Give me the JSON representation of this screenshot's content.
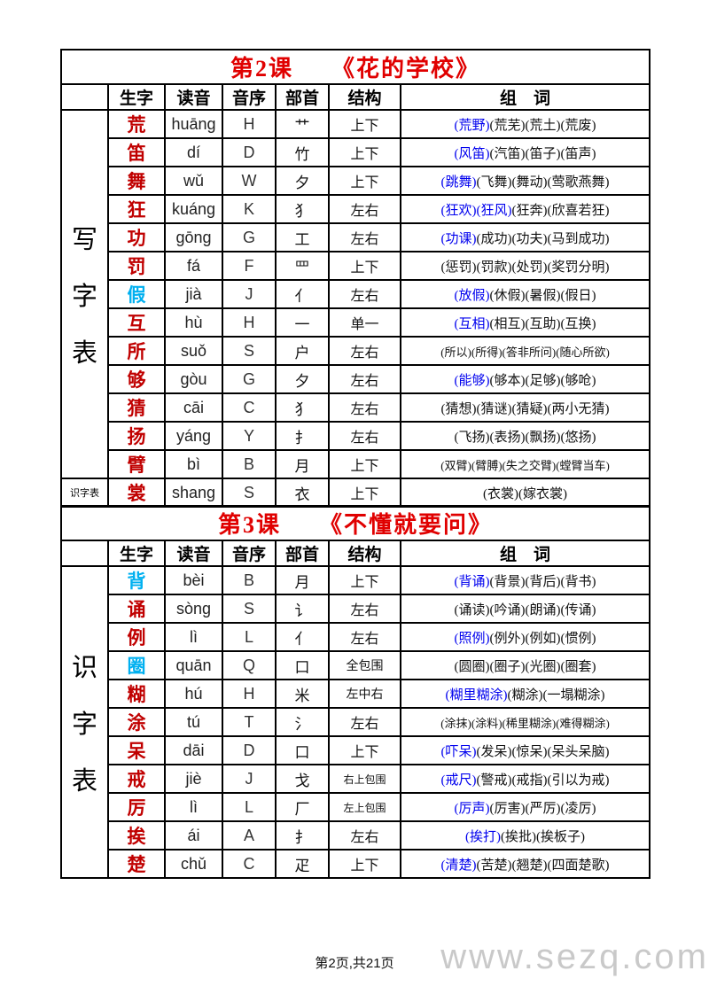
{
  "page": {
    "footer": "第2页,共21页",
    "watermark": "www.sezq.com"
  },
  "colors": {
    "title_red": "#e00000",
    "character_red": "#c00000",
    "character_cyan": "#00b0f0",
    "highlight_blue": "#0000ee",
    "watermark_gray": "#c9c9c9"
  },
  "columns": [
    "生字",
    "读音",
    "音序",
    "部首",
    "结构",
    "组　词"
  ],
  "tables": [
    {
      "title": "第2课　　《花的学校》",
      "side_label": "写字表",
      "bottom_side_label": "识字表",
      "rows": [
        {
          "char": "荒",
          "char_color": "red",
          "pinyin": "huāng",
          "initial": "H",
          "radical": "艹",
          "structure": "上下",
          "hl": "(荒野)",
          "rest": "(荒芜)(荒土)(荒废)"
        },
        {
          "char": "笛",
          "char_color": "red",
          "pinyin": "dí",
          "initial": "D",
          "radical": "竹",
          "structure": "上下",
          "hl": "(风笛)",
          "rest": "(汽笛)(笛子)(笛声)"
        },
        {
          "char": "舞",
          "char_color": "red",
          "pinyin": "wǔ",
          "initial": "W",
          "radical": "夕",
          "structure": "上下",
          "hl": "(跳舞)",
          "rest": "(飞舞)(舞动)(莺歌燕舞)"
        },
        {
          "char": "狂",
          "char_color": "red",
          "pinyin": "kuáng",
          "initial": "K",
          "radical": "犭",
          "structure": "左右",
          "hl": "(狂欢)(狂风)",
          "rest": "(狂奔)(欣喜若狂)"
        },
        {
          "char": "功",
          "char_color": "red",
          "pinyin": "gōng",
          "initial": "G",
          "radical": "工",
          "structure": "左右",
          "hl": "(功课)",
          "rest": "(成功)(功夫)(马到成功)"
        },
        {
          "char": "罚",
          "char_color": "red",
          "pinyin": "fá",
          "initial": "F",
          "radical": "罒",
          "structure": "上下",
          "hl": "",
          "rest": "(惩罚)(罚款)(处罚)(奖罚分明)"
        },
        {
          "char": "假",
          "char_color": "cyan",
          "pinyin": "jià",
          "initial": "J",
          "radical": "亻",
          "structure": "左右",
          "hl": "(放假)",
          "rest": "(休假)(暑假)(假日)"
        },
        {
          "char": "互",
          "char_color": "red",
          "pinyin": "hù",
          "initial": "H",
          "radical": "一",
          "structure": "单一",
          "hl": "(互相)",
          "rest": "(相互)(互助)(互换)"
        },
        {
          "char": "所",
          "char_color": "red",
          "pinyin": "suǒ",
          "initial": "S",
          "radical": "户",
          "structure": "左右",
          "hl": "",
          "rest": "(所以)(所得)(答非所问)(随心所欲)"
        },
        {
          "char": "够",
          "char_color": "red",
          "pinyin": "gòu",
          "initial": "G",
          "radical": "夕",
          "structure": "左右",
          "hl": "(能够)",
          "rest": "(够本)(足够)(够呛)"
        },
        {
          "char": "猜",
          "char_color": "red",
          "pinyin": "cāi",
          "initial": "C",
          "radical": "犭",
          "structure": "左右",
          "hl": "",
          "rest": "(猜想)(猜谜)(猜疑)(两小无猜)"
        },
        {
          "char": "扬",
          "char_color": "red",
          "pinyin": "yáng",
          "initial": "Y",
          "radical": "扌",
          "structure": "左右",
          "hl": "",
          "rest": "(飞扬)(表扬)(飘扬)(悠扬)"
        },
        {
          "char": "臂",
          "char_color": "red",
          "pinyin": "bì",
          "initial": "B",
          "radical": "月",
          "structure": "上下",
          "hl": "",
          "rest": "(双臂)(臂膊)(失之交臂)(螳臂当车)"
        },
        {
          "char": "裳",
          "char_color": "red",
          "pinyin": "shang",
          "initial": "S",
          "radical": "衣",
          "structure": "上下",
          "hl": "",
          "rest": "(衣裳)(嫁衣裳)"
        }
      ]
    },
    {
      "title": "第3课　　《不懂就要问》",
      "side_label": "识字表",
      "bottom_side_label": "",
      "rows": [
        {
          "char": "背",
          "char_color": "cyan",
          "pinyin": "bèi",
          "initial": "B",
          "radical": "月",
          "structure": "上下",
          "hl": "(背诵)",
          "rest": "(背景)(背后)(背书)"
        },
        {
          "char": "诵",
          "char_color": "red",
          "pinyin": "sòng",
          "initial": "S",
          "radical": "讠",
          "structure": "左右",
          "hl": "",
          "rest": "(诵读)(吟诵)(朗诵)(传诵)"
        },
        {
          "char": "例",
          "char_color": "red",
          "pinyin": "lì",
          "initial": "L",
          "radical": "亻",
          "structure": "左右",
          "hl": "(照例)",
          "rest": "(例外)(例如)(惯例)"
        },
        {
          "char": "圈",
          "char_color": "cyan",
          "pinyin": "quān",
          "initial": "Q",
          "radical": "口",
          "structure": "全包围",
          "hl": "",
          "rest": "(圆圈)(圈子)(光圈)(圈套)"
        },
        {
          "char": "糊",
          "char_color": "red",
          "pinyin": "hú",
          "initial": "H",
          "radical": "米",
          "structure": "左中右",
          "hl": "(糊里糊涂)",
          "rest": "(糊涂)(一塌糊涂)"
        },
        {
          "char": "涂",
          "char_color": "red",
          "pinyin": "tú",
          "initial": "T",
          "radical": "氵",
          "structure": "左右",
          "hl": "",
          "rest": "(涂抹)(涂料)(稀里糊涂)(难得糊涂)"
        },
        {
          "char": "呆",
          "char_color": "red",
          "pinyin": "dāi",
          "initial": "D",
          "radical": "口",
          "structure": "上下",
          "hl": "(吓呆)",
          "rest": "(发呆)(惊呆)(呆头呆脑)"
        },
        {
          "char": "戒",
          "char_color": "red",
          "pinyin": "jiè",
          "initial": "J",
          "radical": "戈",
          "structure": "右上包围",
          "hl": "(戒尺)",
          "rest": "(警戒)(戒指)(引以为戒)"
        },
        {
          "char": "厉",
          "char_color": "red",
          "pinyin": "lì",
          "initial": "L",
          "radical": "厂",
          "structure": "左上包围",
          "hl": "(厉声)",
          "rest": "(厉害)(严厉)(凌厉)"
        },
        {
          "char": "挨",
          "char_color": "red",
          "pinyin": "ái",
          "initial": "A",
          "radical": "扌",
          "structure": "左右",
          "hl": "(挨打)",
          "rest": "(挨批)(挨板子)"
        },
        {
          "char": "楚",
          "char_color": "red",
          "pinyin": "chǔ",
          "initial": "C",
          "radical": "疋",
          "structure": "上下",
          "hl": "(清楚)",
          "rest": "(苦楚)(翘楚)(四面楚歌)"
        }
      ]
    }
  ]
}
